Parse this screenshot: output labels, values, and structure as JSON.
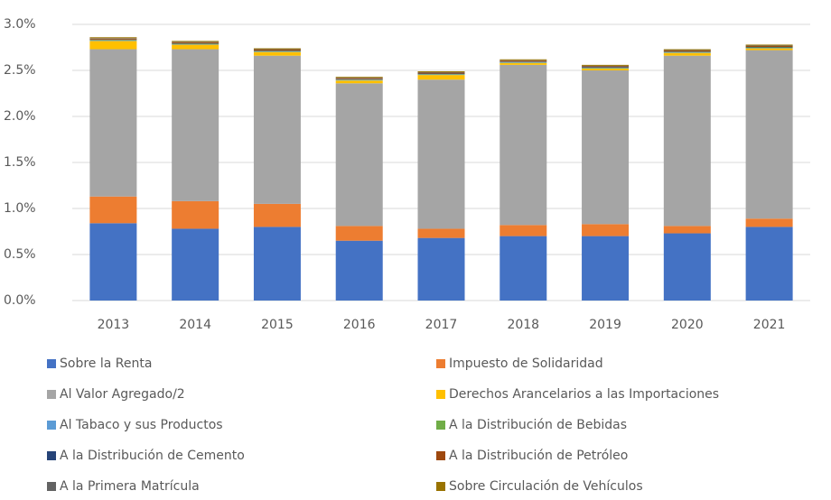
{
  "chart_data": {
    "type": "stacked_bar",
    "categories": [
      "2013",
      "2014",
      "2015",
      "2016",
      "2017",
      "2018",
      "2019",
      "2020",
      "2021"
    ],
    "series": [
      {
        "name": "Sobre la Renta",
        "color": "#4472c4",
        "values": [
          0.84,
          0.78,
          0.8,
          0.65,
          0.68,
          0.7,
          0.7,
          0.73,
          0.8
        ]
      },
      {
        "name": "Impuesto de Solidaridad",
        "color": "#ed7d31",
        "values": [
          0.29,
          0.3,
          0.25,
          0.16,
          0.1,
          0.12,
          0.13,
          0.08,
          0.09
        ]
      },
      {
        "name": "Al Valor Agregado/2",
        "color": "#a5a5a5",
        "values": [
          1.6,
          1.65,
          1.61,
          1.55,
          1.62,
          1.74,
          1.67,
          1.85,
          1.83
        ]
      },
      {
        "name": "Derechos Arancelarios a las Importaciones",
        "color": "#ffc000",
        "values": [
          0.09,
          0.05,
          0.04,
          0.03,
          0.05,
          0.02,
          0.02,
          0.03,
          0.02
        ]
      },
      {
        "name": "Al Tabaco y sus Productos",
        "color": "#5b9bd5",
        "values": [
          0.005,
          0.005,
          0.005,
          0.005,
          0.005,
          0.005,
          0.005,
          0.005,
          0.005
        ]
      },
      {
        "name": "A la Distribución de Bebidas",
        "color": "#70ad47",
        "values": [
          0.005,
          0.005,
          0.005,
          0.005,
          0.005,
          0.005,
          0.005,
          0.005,
          0.005
        ]
      },
      {
        "name": "A la Distribución de Cemento",
        "color": "#264478",
        "values": [
          0.005,
          0.005,
          0.005,
          0.005,
          0.005,
          0.005,
          0.005,
          0.005,
          0.005
        ]
      },
      {
        "name": "A la Distribución de Petróleo",
        "color": "#9e480e",
        "values": [
          0.01,
          0.01,
          0.01,
          0.01,
          0.01,
          0.01,
          0.01,
          0.01,
          0.01
        ]
      },
      {
        "name": "A la Primera Matrícula",
        "color": "#636363",
        "values": [
          0.005,
          0.005,
          0.005,
          0.005,
          0.005,
          0.005,
          0.005,
          0.005,
          0.005
        ]
      },
      {
        "name": "Sobre Circulación de Vehículos",
        "color": "#997300",
        "values": [
          0.01,
          0.01,
          0.01,
          0.01,
          0.01,
          0.01,
          0.01,
          0.01,
          0.01
        ]
      }
    ],
    "ylim": [
      0,
      3
    ],
    "yticks": [
      {
        "value": 0,
        "label": "0.0%"
      },
      {
        "value": 0.5,
        "label": "0.5%"
      },
      {
        "value": 1,
        "label": "1.0%"
      },
      {
        "value": 1.5,
        "label": "1.5%"
      },
      {
        "value": 2,
        "label": "2.0%"
      },
      {
        "value": 2.5,
        "label": "2.5%"
      },
      {
        "value": 3,
        "label": "3.0%"
      }
    ],
    "grid": true,
    "legend": "bottom"
  }
}
